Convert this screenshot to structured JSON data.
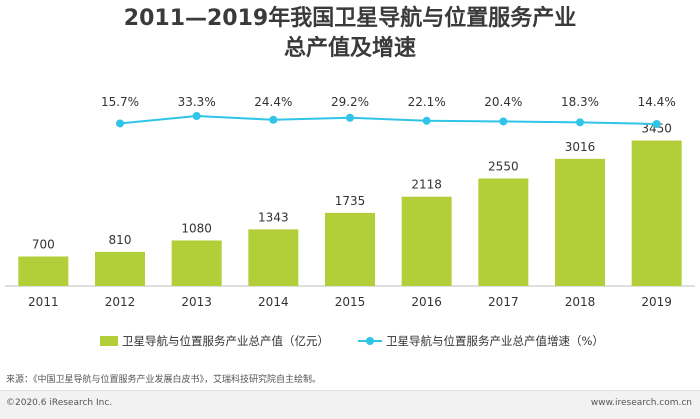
{
  "chart_data": {
    "type": "bar",
    "title": "2011—2019年我国卫星导航与位置服务产业总产值及增速",
    "categories": [
      "2011",
      "2012",
      "2013",
      "2014",
      "2015",
      "2016",
      "2017",
      "2018",
      "2019"
    ],
    "series": [
      {
        "name": "卫星导航与位置服务产业总产值（亿元）",
        "type": "bar",
        "values": [
          700,
          810,
          1080,
          1343,
          1735,
          2118,
          2550,
          3016,
          3450
        ]
      },
      {
        "name": "卫星导航与位置服务产业总产值增速（%）",
        "type": "line",
        "values": [
          null,
          15.7,
          33.3,
          24.4,
          29.2,
          22.1,
          20.4,
          18.3,
          14.4
        ]
      }
    ],
    "bar_labels": [
      "700",
      "810",
      "1080",
      "1343",
      "1735",
      "2118",
      "2550",
      "3016",
      "3450"
    ],
    "line_labels": [
      "",
      "15.7%",
      "33.3%",
      "24.4%",
      "29.2%",
      "22.1%",
      "20.4%",
      "18.3%",
      "14.4%"
    ],
    "ylim": [
      0,
      3700
    ],
    "grid": false,
    "legend_position": "bottom",
    "colors": {
      "bar": "#b2cf3a",
      "line": "#2fc4e8"
    }
  },
  "source_note": "来源：《中国卫星导航与位置服务产业发展白皮书》，艾瑞科技研究院自主绘制。",
  "footer": {
    "copyright": "©2020.6 iResearch Inc.",
    "website": "www.iresearch.com.cn"
  }
}
